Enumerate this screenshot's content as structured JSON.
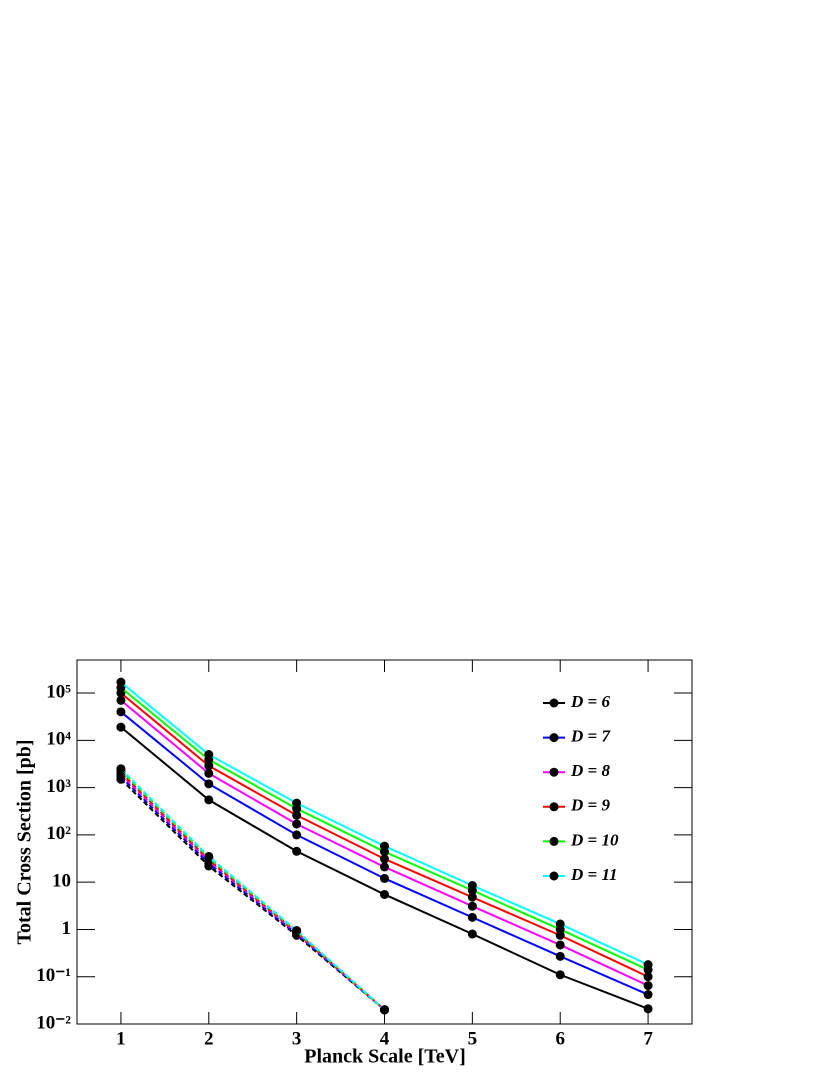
{
  "chart_data": {
    "type": "line",
    "x_label": "Planck Scale [TeV]",
    "y_label": "Total Cross Section [pb]",
    "y_scale": "log",
    "xlim": [
      0.5,
      7.5
    ],
    "ylim": [
      0.01,
      500000
    ],
    "xticks": [
      1,
      2,
      3,
      4,
      5,
      6,
      7
    ],
    "yticks": [
      {
        "value": 100000,
        "label": "10⁵"
      },
      {
        "value": 10000,
        "label": "10⁴"
      },
      {
        "value": 1000,
        "label": "10³"
      },
      {
        "value": 100,
        "label": "10²"
      },
      10,
      1,
      {
        "value": 0.1,
        "label": "10⁻¹"
      },
      {
        "value": 0.01,
        "label": "10⁻²"
      }
    ],
    "series": [
      {
        "name": "D = 6",
        "color": "#000000",
        "style": "solid",
        "x": [
          1,
          2,
          3,
          4,
          5,
          6,
          7
        ],
        "values": [
          19000,
          550,
          45,
          5.5,
          0.8,
          0.11,
          0.021
        ]
      },
      {
        "name": "D = 7",
        "color": "#0000ff",
        "style": "solid",
        "x": [
          1,
          2,
          3,
          4,
          5,
          6,
          7
        ],
        "values": [
          40000,
          1200,
          100,
          12,
          1.8,
          0.27,
          0.042
        ]
      },
      {
        "name": "D = 8",
        "color": "#ff00ff",
        "style": "solid",
        "x": [
          1,
          2,
          3,
          4,
          5,
          6,
          7
        ],
        "values": [
          70000,
          2000,
          170,
          21,
          3.1,
          0.47,
          0.065
        ]
      },
      {
        "name": "D = 9",
        "color": "#ff0000",
        "style": "solid",
        "x": [
          1,
          2,
          3,
          4,
          5,
          6,
          7
        ],
        "values": [
          100000,
          2900,
          260,
          31,
          4.8,
          0.75,
          0.1
        ]
      },
      {
        "name": "D = 10",
        "color": "#00ff00",
        "style": "solid",
        "x": [
          1,
          2,
          3,
          4,
          5,
          6,
          7
        ],
        "values": [
          130000,
          3900,
          360,
          44,
          6.7,
          1.0,
          0.14
        ]
      },
      {
        "name": "D = 11",
        "color": "#00ffff",
        "style": "solid",
        "x": [
          1,
          2,
          3,
          4,
          5,
          6,
          7
        ],
        "values": [
          170000,
          5000,
          470,
          58,
          8.5,
          1.3,
          0.18
        ]
      },
      {
        "color": "#000000",
        "style": "dashed",
        "x": [
          1,
          2,
          3,
          4
        ],
        "values": [
          1500,
          22,
          0.75,
          0.02
        ]
      },
      {
        "color": "#0000ff",
        "style": "dashed",
        "x": [
          1,
          2,
          3,
          4
        ],
        "values": [
          1700,
          25,
          0.8,
          0.02
        ]
      },
      {
        "color": "#ff00ff",
        "style": "dashed",
        "x": [
          1,
          2,
          3,
          4
        ],
        "values": [
          1900,
          28,
          0.85,
          0.02
        ]
      },
      {
        "color": "#ff0000",
        "style": "dashed",
        "x": [
          1,
          2,
          3,
          4
        ],
        "values": [
          2100,
          30,
          0.88,
          0.02
        ]
      },
      {
        "color": "#00ff00",
        "style": "dashed",
        "x": [
          1,
          2,
          3,
          4
        ],
        "values": [
          2300,
          33,
          0.92,
          0.02
        ]
      },
      {
        "color": "#00ffff",
        "style": "dashed",
        "x": [
          1,
          2,
          3,
          4
        ],
        "values": [
          2500,
          35,
          0.95,
          0.02
        ]
      }
    ]
  }
}
